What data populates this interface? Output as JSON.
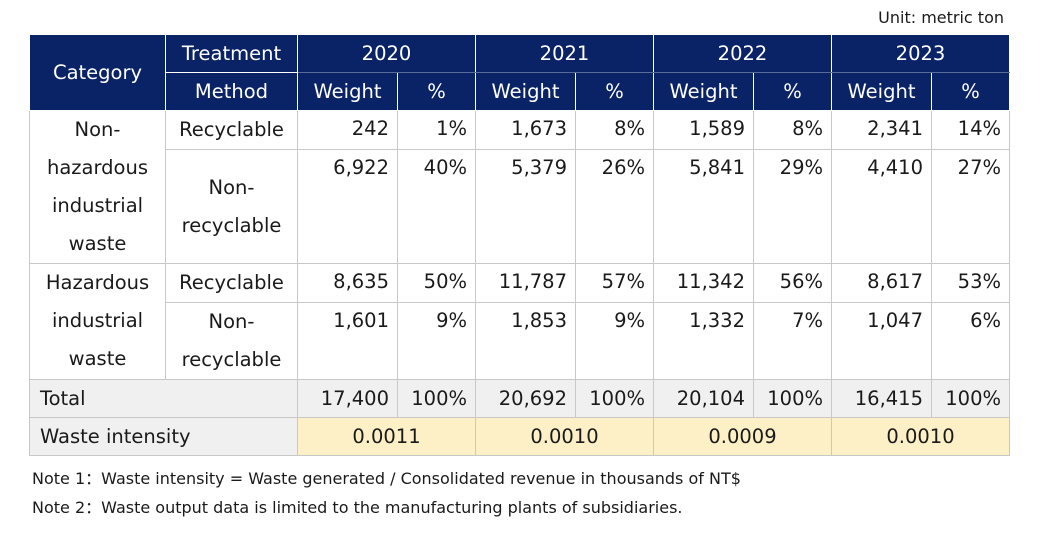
{
  "unit": "Unit: metric ton",
  "header": {
    "category": "Category",
    "method_line1": "Treatment",
    "method_line2": "Method",
    "years": [
      "2020",
      "2021",
      "2022",
      "2023"
    ],
    "weight": "Weight",
    "pct": "%"
  },
  "rows": [
    {
      "category": "Non-hazardous industrial waste",
      "methods": [
        {
          "method": "Recyclable",
          "values": [
            "242",
            "1%",
            "1,673",
            "8%",
            "1,589",
            "8%",
            "2,341",
            "14%"
          ]
        },
        {
          "method": "Non-recyclable",
          "values": [
            "6,922",
            "40%",
            "5,379",
            "26%",
            "5,841",
            "29%",
            "4,410",
            "27%"
          ]
        }
      ]
    },
    {
      "category": "Hazardous industrial waste",
      "methods": [
        {
          "method": "Recyclable",
          "values": [
            "8,635",
            "50%",
            "11,787",
            "57%",
            "11,342",
            "56%",
            "8,617",
            "53%"
          ]
        },
        {
          "method": "Non-recyclable",
          "values": [
            "1,601",
            "9%",
            "1,853",
            "9%",
            "1,332",
            "7%",
            "1,047",
            "6%"
          ]
        }
      ]
    }
  ],
  "total": {
    "label": "Total",
    "values": [
      "17,400",
      "100%",
      "20,692",
      "100%",
      "20,104",
      "100%",
      "16,415",
      "100%"
    ]
  },
  "waste_intensity": {
    "label": "Waste intensity",
    "values": [
      "0.0011",
      "0.0010",
      "0.0009",
      "0.0010"
    ]
  },
  "notes": [
    "Note 1：Waste intensity = Waste generated / Consolidated revenue in thousands of NT$",
    "Note 2：Waste output data is limited to the manufacturing plants of subsidiaries."
  ],
  "colors": {
    "header_bg": "#0a2266",
    "intensity_bg": "#fdf0c6",
    "total_bg": "#f0f0f0"
  }
}
